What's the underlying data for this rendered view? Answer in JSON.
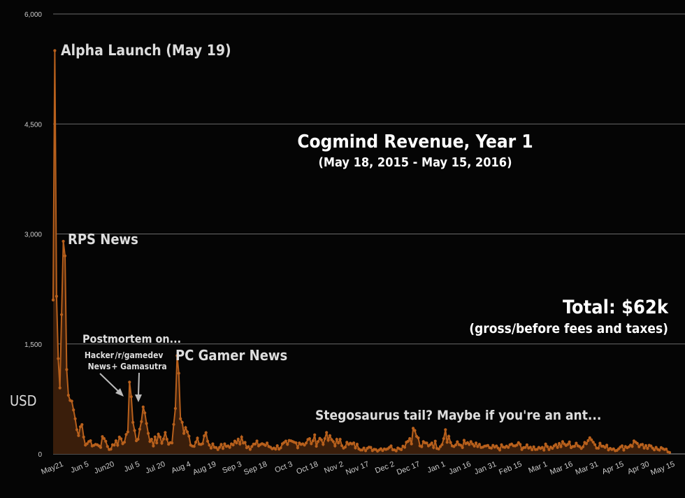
{
  "chart_data": {
    "type": "area",
    "title": "Cogmind Revenue, Year 1",
    "subtitle": "(May 18, 2015 - May 15, 2016)",
    "ylabel": "USD",
    "xlabel": "",
    "ylim": [
      0,
      6000
    ],
    "yticks": [
      "6,000",
      "4,500",
      "3,000",
      "1,500",
      "0"
    ],
    "ytick_values": [
      6000,
      4500,
      3000,
      1500,
      0
    ],
    "grid": true,
    "legend": "none",
    "x_range": [
      "2015-05-18",
      "2016-05-15"
    ],
    "xticks": [
      {
        "label": "May21",
        "date": "2015-05-21"
      },
      {
        "label": "Jun 5",
        "date": "2015-06-05"
      },
      {
        "label": "Jun20",
        "date": "2015-06-20"
      },
      {
        "label": "Jul 5",
        "date": "2015-07-05"
      },
      {
        "label": "Jul 20",
        "date": "2015-07-20"
      },
      {
        "label": "Aug 4",
        "date": "2015-08-04"
      },
      {
        "label": "Aug 19",
        "date": "2015-08-19"
      },
      {
        "label": "Sep 3",
        "date": "2015-09-03"
      },
      {
        "label": "Sep 18",
        "date": "2015-09-18"
      },
      {
        "label": "Oct 3",
        "date": "2015-10-03"
      },
      {
        "label": "Oct 18",
        "date": "2015-10-18"
      },
      {
        "label": "Nov 2",
        "date": "2015-11-02"
      },
      {
        "label": "Nov 17",
        "date": "2015-11-17"
      },
      {
        "label": "Dec 2",
        "date": "2015-12-02"
      },
      {
        "label": "Dec 17",
        "date": "2015-12-17"
      },
      {
        "label": "Jan 1",
        "date": "2016-01-01"
      },
      {
        "label": "Jan 16",
        "date": "2016-01-16"
      },
      {
        "label": "Jan 31",
        "date": "2016-01-31"
      },
      {
        "label": "Feb 15",
        "date": "2016-02-15"
      },
      {
        "label": "Mar 1",
        "date": "2016-03-01"
      },
      {
        "label": "Mar 16",
        "date": "2016-03-16"
      },
      {
        "label": "Mar 31",
        "date": "2016-03-31"
      },
      {
        "label": "Apr 15",
        "date": "2016-04-15"
      },
      {
        "label": "Apr 30",
        "date": "2016-04-30"
      },
      {
        "label": "May 15",
        "date": "2016-05-15"
      }
    ],
    "keypoints": [
      [
        "2015-05-18",
        2100
      ],
      [
        "2015-05-19",
        5500
      ],
      [
        "2015-05-20",
        2150
      ],
      [
        "2015-05-21",
        1300
      ],
      [
        "2015-05-22",
        900
      ],
      [
        "2015-05-23",
        1900
      ],
      [
        "2015-05-24",
        2900
      ],
      [
        "2015-05-25",
        2700
      ],
      [
        "2015-05-26",
        1150
      ],
      [
        "2015-05-27",
        800
      ],
      [
        "2015-05-28",
        730
      ],
      [
        "2015-05-29",
        720
      ],
      [
        "2015-05-30",
        600
      ],
      [
        "2015-05-31",
        480
      ],
      [
        "2015-06-01",
        330
      ],
      [
        "2015-06-02",
        250
      ],
      [
        "2015-06-03",
        370
      ],
      [
        "2015-06-04",
        400
      ],
      [
        "2015-06-05",
        230
      ],
      [
        "2015-06-06",
        120
      ],
      [
        "2015-06-09",
        180
      ],
      [
        "2015-06-14",
        110
      ],
      [
        "2015-06-17",
        210
      ],
      [
        "2015-06-20",
        60
      ],
      [
        "2015-06-23",
        120
      ],
      [
        "2015-06-26",
        230
      ],
      [
        "2015-06-29",
        160
      ],
      [
        "2015-07-01",
        300
      ],
      [
        "2015-07-02",
        980
      ],
      [
        "2015-07-03",
        780
      ],
      [
        "2015-07-04",
        430
      ],
      [
        "2015-07-05",
        320
      ],
      [
        "2015-07-07",
        200
      ],
      [
        "2015-07-09",
        440
      ],
      [
        "2015-07-10",
        640
      ],
      [
        "2015-07-11",
        560
      ],
      [
        "2015-07-13",
        280
      ],
      [
        "2015-07-15",
        200
      ],
      [
        "2015-07-18",
        150
      ],
      [
        "2015-07-20",
        230
      ],
      [
        "2015-07-24",
        200
      ],
      [
        "2015-07-27",
        150
      ],
      [
        "2015-07-29",
        620
      ],
      [
        "2015-07-30",
        1340
      ],
      [
        "2015-07-31",
        1100
      ],
      [
        "2015-08-01",
        480
      ],
      [
        "2015-08-02",
        430
      ],
      [
        "2015-08-03",
        280
      ],
      [
        "2015-08-04",
        360
      ],
      [
        "2015-08-05",
        300
      ],
      [
        "2015-08-07",
        120
      ],
      [
        "2015-08-10",
        160
      ],
      [
        "2015-08-13",
        130
      ],
      [
        "2015-08-16",
        290
      ],
      [
        "2015-08-18",
        120
      ],
      [
        "2015-08-24",
        90
      ],
      [
        "2015-08-29",
        110
      ],
      [
        "2015-09-03",
        150
      ],
      [
        "2015-09-06",
        230
      ],
      [
        "2015-09-10",
        100
      ],
      [
        "2015-09-18",
        140
      ],
      [
        "2015-09-25",
        80
      ],
      [
        "2015-10-03",
        130
      ],
      [
        "2015-10-10",
        150
      ],
      [
        "2015-10-18",
        180
      ],
      [
        "2015-10-25",
        210
      ],
      [
        "2015-11-02",
        150
      ],
      [
        "2015-11-08",
        130
      ],
      [
        "2015-11-17",
        80
      ],
      [
        "2015-11-24",
        60
      ],
      [
        "2015-12-02",
        90
      ],
      [
        "2015-12-08",
        70
      ],
      [
        "2015-12-14",
        210
      ],
      [
        "2015-12-17",
        320
      ],
      [
        "2015-12-20",
        110
      ],
      [
        "2015-12-27",
        150
      ],
      [
        "2016-01-01",
        100
      ],
      [
        "2016-01-04",
        330
      ],
      [
        "2016-01-08",
        110
      ],
      [
        "2016-01-16",
        140
      ],
      [
        "2016-01-23",
        100
      ],
      [
        "2016-01-31",
        80
      ],
      [
        "2016-02-08",
        90
      ],
      [
        "2016-02-15",
        120
      ],
      [
        "2016-02-22",
        80
      ],
      [
        "2016-03-01",
        90
      ],
      [
        "2016-03-08",
        110
      ],
      [
        "2016-03-16",
        130
      ],
      [
        "2016-03-23",
        100
      ],
      [
        "2016-03-29",
        220
      ],
      [
        "2016-03-31",
        160
      ],
      [
        "2016-04-07",
        90
      ],
      [
        "2016-04-15",
        70
      ],
      [
        "2016-04-22",
        120
      ],
      [
        "2016-04-25",
        160
      ],
      [
        "2016-04-30",
        80
      ],
      [
        "2016-05-07",
        90
      ],
      [
        "2016-05-12",
        60
      ],
      [
        "2016-05-15",
        20
      ]
    ],
    "annotations": [
      {
        "text": "Alpha Launch (May 19)",
        "date": "2015-05-19",
        "value": 5500
      },
      {
        "text": "RPS News",
        "date": "2015-05-24",
        "value": 2900
      },
      {
        "text": "Postmortem on...",
        "date": "2015-07-02",
        "value": 980
      },
      {
        "text": "Hacker",
        "date": "2015-07-02",
        "value": 980
      },
      {
        "text": "News",
        "date": "2015-07-02",
        "value": 980
      },
      {
        "text": "/r/gamedev",
        "date": "2015-07-10",
        "value": 640
      },
      {
        "text": "+ Gamasutra",
        "date": "2015-07-10",
        "value": 640
      },
      {
        "text": "PC Gamer News",
        "date": "2015-07-30",
        "value": 1340
      },
      {
        "text": "Stegosaurus tail? Maybe if you're an ant...",
        "date": "2015-12-17",
        "value": 320
      }
    ],
    "total": {
      "label": "Total: $62k",
      "note": "(gross/before fees and taxes)"
    },
    "colors": {
      "line": "#b8601c",
      "fill": "#3a1e0b",
      "grid": "#6a6a6a",
      "text": "#ffffff"
    }
  }
}
